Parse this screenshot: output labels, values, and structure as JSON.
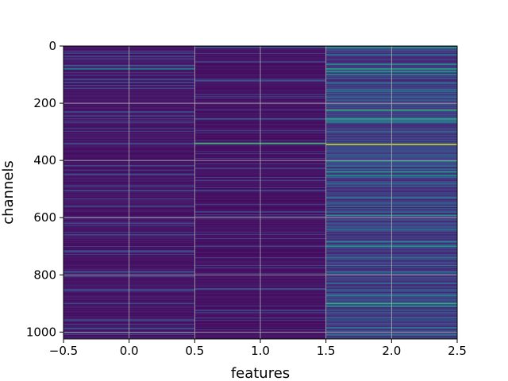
{
  "chart_data": {
    "type": "heatmap",
    "title": "",
    "xlabel": "features",
    "ylabel": "channels",
    "xlim": [
      -0.5,
      2.5
    ],
    "ylim": [
      1024,
      0
    ],
    "x_ticks": [
      -0.5,
      0.0,
      0.5,
      1.0,
      1.5,
      2.0,
      2.5
    ],
    "x_tick_labels": [
      "−0.5",
      "0.0",
      "0.5",
      "1.0",
      "1.5",
      "2.0",
      "2.5"
    ],
    "y_ticks": [
      0,
      200,
      400,
      600,
      800,
      1000
    ],
    "y_tick_labels": [
      "0",
      "200",
      "400",
      "600",
      "800",
      "1000"
    ],
    "grid": true,
    "colormap": "viridis",
    "n_rows": 1024,
    "n_cols": 3,
    "columns": [
      {
        "feature": 0,
        "base_level": 0.06,
        "bright_rows": [
          {
            "row": 25,
            "value": 0.22
          },
          {
            "row": 45,
            "value": 0.2
          },
          {
            "row": 68,
            "value": 0.3
          },
          {
            "row": 80,
            "value": 0.45
          },
          {
            "row": 118,
            "value": 0.2
          },
          {
            "row": 148,
            "value": 0.2
          },
          {
            "row": 230,
            "value": 0.22
          },
          {
            "row": 340,
            "value": 0.22
          },
          {
            "row": 418,
            "value": 0.22
          },
          {
            "row": 448,
            "value": 0.22
          },
          {
            "row": 505,
            "value": 0.22
          },
          {
            "row": 560,
            "value": 0.22
          },
          {
            "row": 620,
            "value": 0.22
          },
          {
            "row": 660,
            "value": 0.22
          },
          {
            "row": 720,
            "value": 0.22
          },
          {
            "row": 790,
            "value": 0.25
          },
          {
            "row": 852,
            "value": 0.22
          },
          {
            "row": 900,
            "value": 0.22
          },
          {
            "row": 960,
            "value": 0.22
          },
          {
            "row": 988,
            "value": 0.3
          }
        ]
      },
      {
        "feature": 1,
        "base_level": 0.05,
        "bright_rows": [
          {
            "row": 5,
            "value": 0.3
          },
          {
            "row": 120,
            "value": 0.25
          },
          {
            "row": 255,
            "value": 0.3
          },
          {
            "row": 340,
            "value": 0.7
          },
          {
            "row": 470,
            "value": 0.2
          },
          {
            "row": 580,
            "value": 0.22
          },
          {
            "row": 700,
            "value": 0.2
          },
          {
            "row": 850,
            "value": 0.25
          }
        ]
      },
      {
        "feature": 2,
        "base_level": 0.18,
        "bright_rows": [
          {
            "row": 5,
            "value": 0.55
          },
          {
            "row": 30,
            "value": 0.35
          },
          {
            "row": 65,
            "value": 0.45
          },
          {
            "row": 80,
            "value": 0.6
          },
          {
            "row": 90,
            "value": 0.55
          },
          {
            "row": 100,
            "value": 0.45
          },
          {
            "row": 130,
            "value": 0.35
          },
          {
            "row": 158,
            "value": 0.38
          },
          {
            "row": 190,
            "value": 0.3
          },
          {
            "row": 224,
            "value": 0.65
          },
          {
            "row": 255,
            "value": 0.62
          },
          {
            "row": 262,
            "value": 0.5
          },
          {
            "row": 300,
            "value": 0.35
          },
          {
            "row": 344,
            "value": 0.9
          },
          {
            "row": 380,
            "value": 0.3
          },
          {
            "row": 402,
            "value": 0.5
          },
          {
            "row": 420,
            "value": 0.35
          },
          {
            "row": 440,
            "value": 0.55
          },
          {
            "row": 452,
            "value": 0.5
          },
          {
            "row": 480,
            "value": 0.35
          },
          {
            "row": 530,
            "value": 0.4
          },
          {
            "row": 560,
            "value": 0.35
          },
          {
            "row": 592,
            "value": 0.5
          },
          {
            "row": 640,
            "value": 0.35
          },
          {
            "row": 684,
            "value": 0.45
          },
          {
            "row": 700,
            "value": 0.5
          },
          {
            "row": 740,
            "value": 0.35
          },
          {
            "row": 790,
            "value": 0.4
          },
          {
            "row": 830,
            "value": 0.35
          },
          {
            "row": 872,
            "value": 0.4
          },
          {
            "row": 900,
            "value": 0.62
          },
          {
            "row": 910,
            "value": 0.5
          },
          {
            "row": 950,
            "value": 0.35
          },
          {
            "row": 985,
            "value": 0.4
          },
          {
            "row": 1010,
            "value": 0.4
          }
        ]
      }
    ]
  }
}
